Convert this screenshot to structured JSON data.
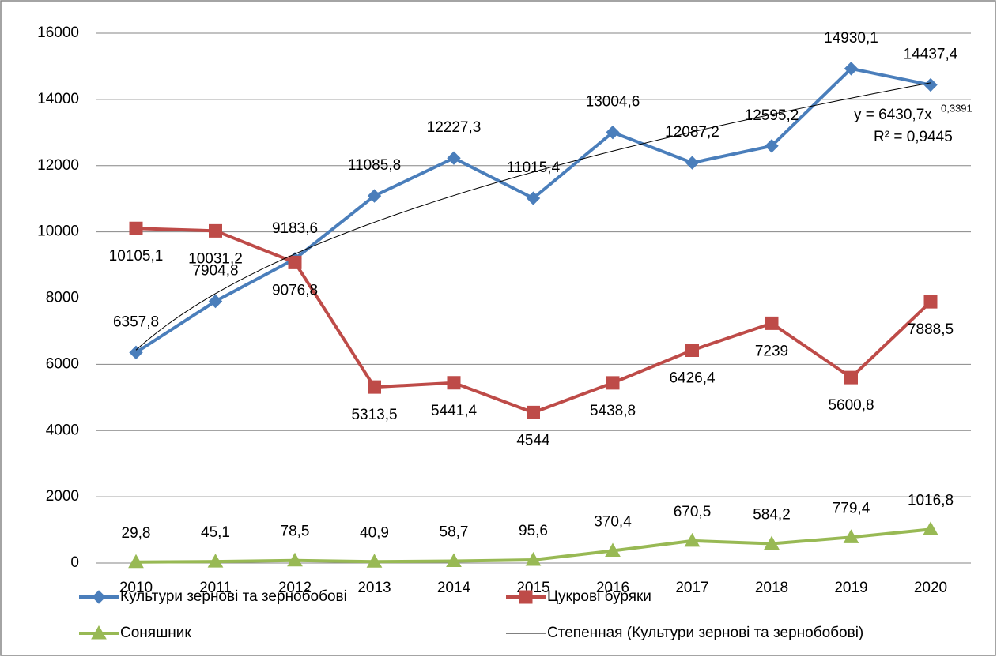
{
  "chart_data": {
    "type": "line",
    "categories": [
      "2010",
      "2011",
      "2012",
      "2013",
      "2014",
      "2015",
      "2016",
      "2017",
      "2018",
      "2019",
      "2020"
    ],
    "series": [
      {
        "name": "Культури зернові та зернобобові",
        "color": "#4a7ebb",
        "marker": "diamond",
        "values": [
          6357.8,
          7904.8,
          9183.6,
          11085.8,
          12227.3,
          11015.4,
          13004.6,
          12087.2,
          12595.2,
          14930.1,
          14437.4
        ],
        "value_labels": [
          "6357,8",
          "7904,8",
          "9183,6",
          "11085,8",
          "12227,3",
          "11015,4",
          "13004,6",
          "12087,2",
          "12595,2",
          "14930,1",
          "14437,4"
        ]
      },
      {
        "name": "Цукрові буряки",
        "color": "#be4b48",
        "marker": "square",
        "values": [
          10105.1,
          10031.2,
          9076.8,
          5313.5,
          5441.4,
          4544,
          5438.8,
          6426.4,
          7239,
          5600.8,
          7888.5
        ],
        "value_labels": [
          "10105,1",
          "10031,2",
          "9076,8",
          "5313,5",
          "5441,4",
          "4544",
          "5438,8",
          "6426,4",
          "7239",
          "5600,8",
          "7888,5"
        ]
      },
      {
        "name": "Соняшник",
        "color": "#98b954",
        "marker": "triangle",
        "values": [
          29.8,
          45.1,
          78.5,
          40.9,
          58.7,
          95.6,
          370.4,
          670.5,
          584.2,
          779.4,
          1016.8
        ],
        "value_labels": [
          "29,8",
          "45,1",
          "78,5",
          "40,9",
          "58,7",
          "95,6",
          "370,4",
          "670,5",
          "584,2",
          "779,4",
          "1016,8"
        ]
      }
    ],
    "trendline": {
      "name": "Степенная (Культури зернові та зернобобові)",
      "color": "#000000",
      "coefficient": 6430.7,
      "exponent": 0.3391,
      "equation": "y = 6430,7x",
      "equation_exponent": "0,3391",
      "r_squared": "R² = 0,9445"
    },
    "ylim": [
      0,
      16000
    ],
    "yticks": [
      0,
      2000,
      4000,
      6000,
      8000,
      10000,
      12000,
      14000,
      16000
    ],
    "grid": true
  }
}
